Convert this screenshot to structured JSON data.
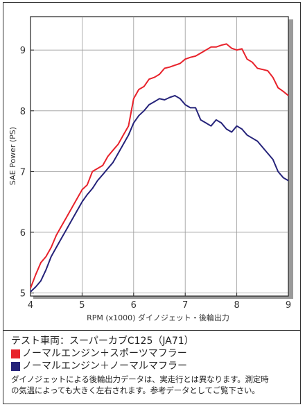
{
  "chart_data": {
    "type": "line",
    "xlabel": "RPM (x1000) ダイノジェット・後輪出力",
    "ylabel": "SAE Power (PS)",
    "xlim": [
      4,
      9
    ],
    "ylim": [
      4.95,
      9.55
    ],
    "x_ticks": [
      "4",
      "5",
      "6",
      "7",
      "8",
      "9"
    ],
    "y_ticks": [
      "5",
      "6",
      "7",
      "8",
      "9"
    ],
    "grid": true,
    "series": [
      {
        "name": "ノーマルエンジン＋スポーツマフラー",
        "color": "#e8222b",
        "x": [
          4.0,
          4.1,
          4.2,
          4.3,
          4.4,
          4.5,
          4.6,
          4.7,
          4.8,
          4.9,
          5.0,
          5.1,
          5.2,
          5.3,
          5.4,
          5.5,
          5.6,
          5.7,
          5.8,
          5.9,
          6.0,
          6.1,
          6.2,
          6.3,
          6.4,
          6.5,
          6.6,
          6.7,
          6.8,
          6.9,
          7.0,
          7.1,
          7.2,
          7.3,
          7.4,
          7.5,
          7.6,
          7.7,
          7.8,
          7.9,
          8.0,
          8.1,
          8.2,
          8.3,
          8.4,
          8.5,
          8.6,
          8.7,
          8.8,
          8.9,
          9.0
        ],
        "y": [
          5.08,
          5.3,
          5.5,
          5.6,
          5.75,
          5.95,
          6.1,
          6.25,
          6.4,
          6.55,
          6.7,
          6.78,
          7.0,
          7.05,
          7.1,
          7.25,
          7.35,
          7.45,
          7.6,
          7.75,
          8.2,
          8.35,
          8.4,
          8.52,
          8.55,
          8.6,
          8.7,
          8.72,
          8.75,
          8.78,
          8.85,
          8.88,
          8.9,
          8.95,
          9.0,
          9.05,
          9.05,
          9.08,
          9.1,
          9.03,
          9.0,
          9.02,
          8.85,
          8.8,
          8.7,
          8.68,
          8.66,
          8.55,
          8.38,
          8.32,
          8.25
        ]
      },
      {
        "name": "ノーマルエンジン＋ノーマルマフラー",
        "color": "#25237a",
        "x": [
          4.0,
          4.1,
          4.2,
          4.3,
          4.4,
          4.5,
          4.6,
          4.7,
          4.8,
          4.9,
          5.0,
          5.1,
          5.2,
          5.3,
          5.4,
          5.5,
          5.6,
          5.7,
          5.8,
          5.9,
          6.0,
          6.1,
          6.2,
          6.3,
          6.4,
          6.5,
          6.6,
          6.7,
          6.8,
          6.9,
          7.0,
          7.1,
          7.2,
          7.3,
          7.4,
          7.5,
          7.6,
          7.7,
          7.8,
          7.9,
          8.0,
          8.1,
          8.2,
          8.3,
          8.4,
          8.5,
          8.6,
          8.7,
          8.8,
          8.9,
          9.0
        ],
        "y": [
          5.02,
          5.1,
          5.2,
          5.38,
          5.6,
          5.75,
          5.9,
          6.05,
          6.2,
          6.35,
          6.5,
          6.62,
          6.72,
          6.85,
          6.95,
          7.05,
          7.15,
          7.3,
          7.45,
          7.6,
          7.8,
          7.92,
          8.0,
          8.1,
          8.15,
          8.2,
          8.18,
          8.22,
          8.25,
          8.2,
          8.1,
          8.05,
          8.05,
          7.85,
          7.8,
          7.75,
          7.85,
          7.8,
          7.7,
          7.65,
          7.75,
          7.7,
          7.6,
          7.55,
          7.5,
          7.4,
          7.3,
          7.2,
          7.0,
          6.9,
          6.85
        ]
      }
    ]
  },
  "info": {
    "vehicle": "テスト車両：スーパーカブC125（JA71）",
    "legend": [
      {
        "label": "ノーマルエンジン＋スポーツマフラー",
        "color": "#e8222b"
      },
      {
        "label": "ノーマルエンジン＋ノーマルマフラー",
        "color": "#25237a"
      }
    ],
    "note_line1": "ダイノジェットによる後輪出力データは、実走行とは異なります。測定時",
    "note_line2": "の気温によっても大きく左右されます。参考データとしてご覧下さい。"
  }
}
